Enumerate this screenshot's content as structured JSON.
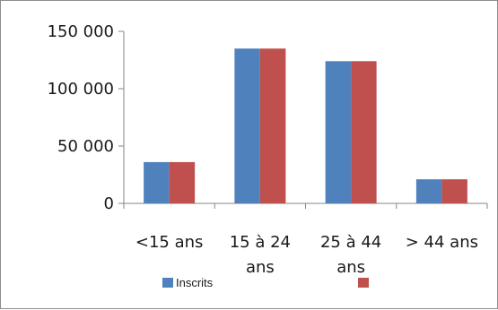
{
  "chart_data": {
    "type": "bar",
    "categories": [
      "<15 ans",
      "15 à 24 ans",
      "25 à 44 ans",
      "> 44 ans"
    ],
    "category_lines": [
      [
        "<15 ans"
      ],
      [
        "15 à 24",
        "ans"
      ],
      [
        "25 à 44",
        "ans"
      ],
      [
        "> 44 ans"
      ]
    ],
    "series": [
      {
        "name": "Inscrits",
        "values": [
          36000,
          135000,
          124000,
          21000
        ],
        "color": "#4f81bd"
      },
      {
        "name": "",
        "values": [
          36000,
          135000,
          124000,
          21000
        ],
        "color": "#c0504d"
      }
    ],
    "yticks": [
      0,
      50000,
      100000,
      150000
    ],
    "ytick_labels": [
      "0",
      "50 000",
      "100 000",
      "150 000"
    ],
    "ylim": [
      0,
      150000
    ],
    "title": "",
    "xlabel": "",
    "ylabel": "",
    "legend_position": "bottom",
    "grid": false
  }
}
